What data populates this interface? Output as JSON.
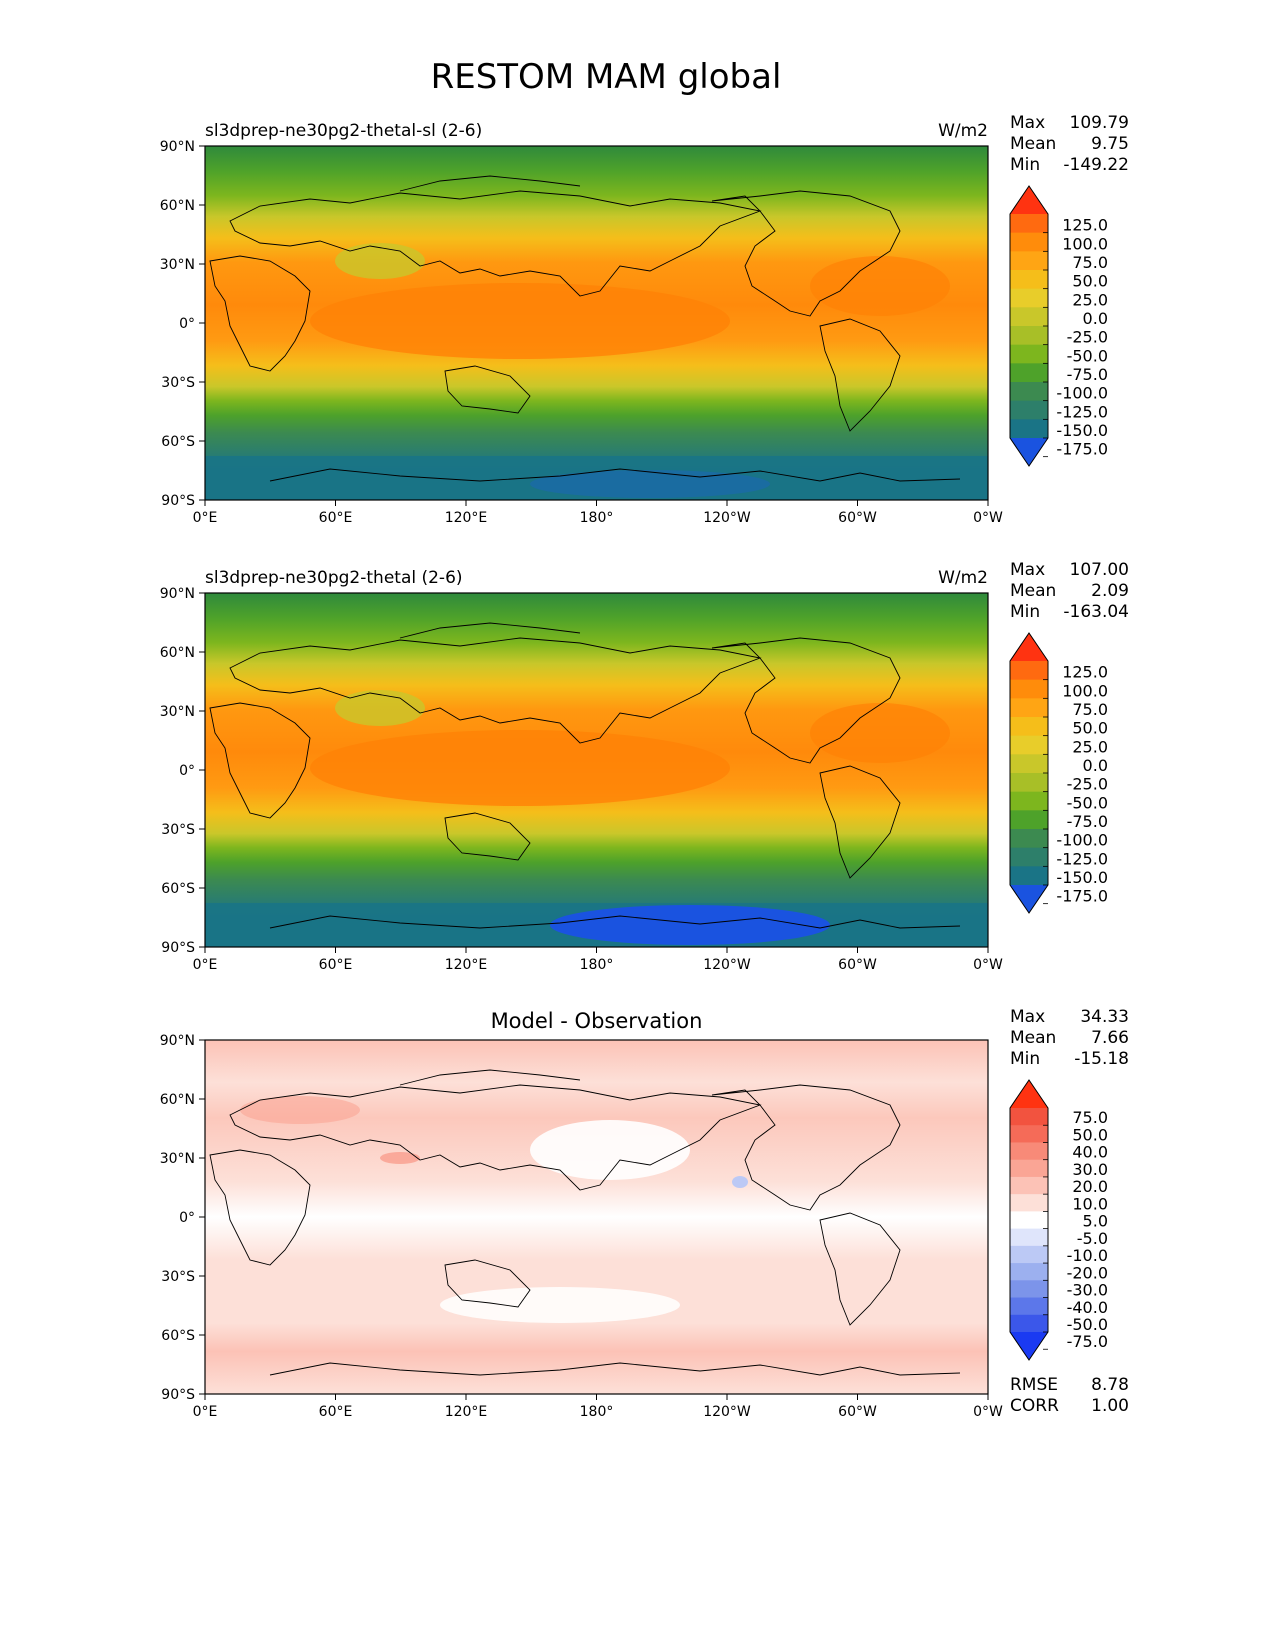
{
  "figure": {
    "title": "RESTOM MAM global"
  },
  "axes": {
    "lat_ticks": [
      "90°N",
      "60°N",
      "30°N",
      "0°",
      "30°S",
      "60°S",
      "90°S"
    ],
    "lon_ticks": [
      "0°E",
      "60°E",
      "120°E",
      "180°",
      "120°W",
      "60°W",
      "0°W"
    ]
  },
  "chart_data": [
    {
      "type": "heatmap",
      "title": "sl3dprep-ne30pg2-thetal-sl (2-6)",
      "units": "W/m2",
      "stats": {
        "max_label": "Max",
        "max": "109.79",
        "mean_label": "Mean",
        "mean": "9.75",
        "min_label": "Min",
        "min": "-149.22"
      },
      "colorbar": {
        "levels": [
          "125.0",
          "100.0",
          "75.0",
          "50.0",
          "25.0",
          "0.0",
          "-25.0",
          "-50.0",
          "-75.0",
          "-100.0",
          "-125.0",
          "-150.0",
          "-175.0"
        ],
        "colors": [
          "#ff3311",
          "#ff6a10",
          "#ff8c0b",
          "#ffa514",
          "#f5be1a",
          "#e8cd2a",
          "#c9c72a",
          "#a8bf27",
          "#7db61e",
          "#4ea22a",
          "#3c8a50",
          "#2d7f6a",
          "#1a7486",
          "#1a53e0"
        ]
      }
    },
    {
      "type": "heatmap",
      "title": "sl3dprep-ne30pg2-thetal (2-6)",
      "units": "W/m2",
      "stats": {
        "max_label": "Max",
        "max": "107.00",
        "mean_label": "Mean",
        "mean": "2.09",
        "min_label": "Min",
        "min": "-163.04"
      },
      "colorbar": {
        "levels": [
          "125.0",
          "100.0",
          "75.0",
          "50.0",
          "25.0",
          "0.0",
          "-25.0",
          "-50.0",
          "-75.0",
          "-100.0",
          "-125.0",
          "-150.0",
          "-175.0"
        ],
        "colors": [
          "#ff3311",
          "#ff6a10",
          "#ff8c0b",
          "#ffa514",
          "#f5be1a",
          "#e8cd2a",
          "#c9c72a",
          "#a8bf27",
          "#7db61e",
          "#4ea22a",
          "#3c8a50",
          "#2d7f6a",
          "#1a7486",
          "#1a53e0"
        ]
      }
    },
    {
      "type": "heatmap",
      "title": "Model - Observation",
      "units": "",
      "stats": {
        "max_label": "Max",
        "max": "34.33",
        "mean_label": "Mean",
        "mean": "7.66",
        "min_label": "Min",
        "min": "-15.18"
      },
      "metrics": {
        "rmse_label": "RMSE",
        "rmse": "8.78",
        "corr_label": "CORR",
        "corr": "1.00"
      },
      "colorbar": {
        "levels": [
          "75.0",
          "50.0",
          "40.0",
          "30.0",
          "20.0",
          "10.0",
          "5.0",
          "-5.0",
          "-10.0",
          "-20.0",
          "-30.0",
          "-40.0",
          "-50.0",
          "-75.0"
        ],
        "colors": [
          "#ff3311",
          "#f2533f",
          "#f56b58",
          "#f88a78",
          "#faa595",
          "#fcc2b6",
          "#fde0d8",
          "#ffffff",
          "#dfe5fb",
          "#bcc9f5",
          "#9cb0ef",
          "#7c94ea",
          "#5c77ea",
          "#3b57ea",
          "#1a3af2"
        ]
      }
    }
  ]
}
